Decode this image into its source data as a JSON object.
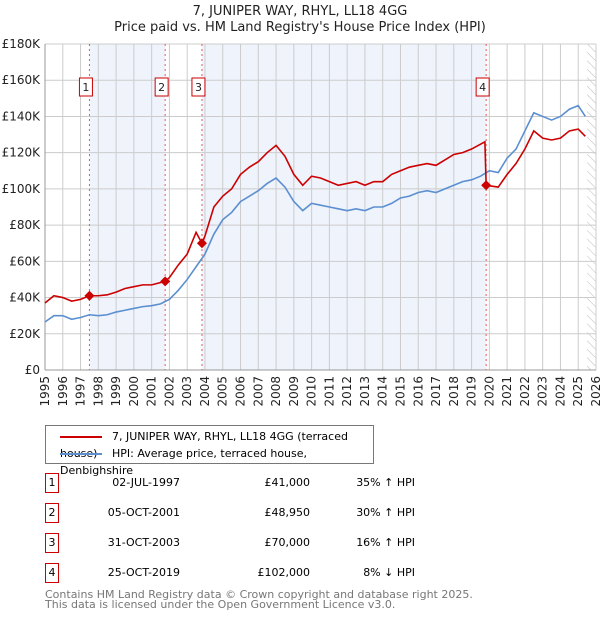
{
  "chart_data": {
    "type": "line",
    "title": "7, JUNIPER WAY, RHYL, LL18 4GG",
    "subtitle": "Price paid vs. HM Land Registry's House Price Index (HPI)",
    "xlim": [
      1995,
      2026
    ],
    "ylim": [
      0,
      180000
    ],
    "y_ticks": [
      {
        "v": 0,
        "l": "£0"
      },
      {
        "v": 20000,
        "l": "£20K"
      },
      {
        "v": 40000,
        "l": "£40K"
      },
      {
        "v": 60000,
        "l": "£60K"
      },
      {
        "v": 80000,
        "l": "£80K"
      },
      {
        "v": 100000,
        "l": "£100K"
      },
      {
        "v": 120000,
        "l": "£120K"
      },
      {
        "v": 140000,
        "l": "£140K"
      },
      {
        "v": 160000,
        "l": "£160K"
      },
      {
        "v": 180000,
        "l": "£180K"
      }
    ],
    "x_ticks": [
      "1995",
      "1996",
      "1997",
      "1998",
      "1999",
      "2000",
      "2001",
      "2002",
      "2003",
      "2004",
      "2005",
      "2006",
      "2007",
      "2008",
      "2009",
      "2010",
      "2011",
      "2012",
      "2013",
      "2014",
      "2015",
      "2016",
      "2017",
      "2018",
      "2019",
      "2020",
      "2021",
      "2022",
      "2023",
      "2024",
      "2025",
      "2026"
    ],
    "grid": true,
    "series": [
      {
        "name": "7, JUNIPER WAY, RHYL, LL18 4GG (terraced house)",
        "color": "#cc0000",
        "x": [
          1995,
          1995.5,
          1996,
          1996.5,
          1997,
          1997.5,
          1998,
          1998.5,
          1999,
          1999.5,
          2000,
          2000.5,
          2001,
          2001.75,
          2002,
          2002.5,
          2003,
          2003.5,
          2003.83,
          2004,
          2004.5,
          2005,
          2005.5,
          2006,
          2006.5,
          2007,
          2007.5,
          2008,
          2008.5,
          2009,
          2009.5,
          2010,
          2010.5,
          2011,
          2011.5,
          2012,
          2012.5,
          2013,
          2013.5,
          2014,
          2014.5,
          2015,
          2015.5,
          2016,
          2016.5,
          2017,
          2017.5,
          2018,
          2018.5,
          2019,
          2019.75,
          2019.82,
          2020.5,
          2021,
          2021.5,
          2022,
          2022.5,
          2023,
          2023.5,
          2024,
          2024.5,
          2025,
          2025.4
        ],
        "y": [
          37000,
          41000,
          40000,
          38000,
          39000,
          41000,
          41000,
          41500,
          43000,
          45000,
          46000,
          47000,
          47000,
          48950,
          51000,
          58000,
          64000,
          76000,
          70000,
          74000,
          90000,
          96000,
          100000,
          108000,
          112000,
          115000,
          120000,
          124000,
          118000,
          108000,
          102000,
          107000,
          106000,
          104000,
          102000,
          103000,
          104000,
          102000,
          104000,
          104000,
          108000,
          110000,
          112000,
          113000,
          114000,
          113000,
          116000,
          119000,
          120000,
          122000,
          126000,
          102000,
          101000,
          108000,
          114000,
          122000,
          132000,
          128000,
          127000,
          128000,
          132000,
          133000,
          129000
        ]
      },
      {
        "name": "HPI: Average price, terraced house, Denbighshire",
        "color": "#5b8fd0",
        "x": [
          1995,
          1995.5,
          1996,
          1996.5,
          1997,
          1997.5,
          1998,
          1998.5,
          1999,
          1999.5,
          2000,
          2000.5,
          2001,
          2001.5,
          2002,
          2002.5,
          2003,
          2003.5,
          2004,
          2004.5,
          2005,
          2005.5,
          2006,
          2006.5,
          2007,
          2007.5,
          2008,
          2008.5,
          2009,
          2009.5,
          2010,
          2010.5,
          2011,
          2011.5,
          2012,
          2012.5,
          2013,
          2013.5,
          2014,
          2014.5,
          2015,
          2015.5,
          2016,
          2016.5,
          2017,
          2017.5,
          2018,
          2018.5,
          2019,
          2019.5,
          2020,
          2020.5,
          2021,
          2021.5,
          2022,
          2022.5,
          2023,
          2023.5,
          2024,
          2024.5,
          2025,
          2025.4
        ],
        "y": [
          26500,
          30000,
          30000,
          28000,
          29000,
          30500,
          30000,
          30500,
          32000,
          33000,
          34000,
          35000,
          35500,
          36500,
          39000,
          44000,
          50000,
          57000,
          64000,
          75000,
          83000,
          87000,
          93000,
          96000,
          99000,
          103000,
          106000,
          101000,
          93000,
          88000,
          92000,
          91000,
          90000,
          89000,
          88000,
          89000,
          88000,
          90000,
          90000,
          92000,
          95000,
          96000,
          98000,
          99000,
          98000,
          100000,
          102000,
          104000,
          105000,
          107000,
          110000,
          109000,
          117000,
          122000,
          132000,
          142000,
          140000,
          138000,
          140000,
          144000,
          146000,
          140000
        ]
      }
    ],
    "sales": [
      {
        "n": "1",
        "x": 1997.5,
        "price": 41000,
        "date": "02-JUL-1997",
        "price_label": "£41,000",
        "hpi": "35% ↑ HPI"
      },
      {
        "n": "2",
        "x": 2001.76,
        "price": 48950,
        "date": "05-OCT-2001",
        "price_label": "£48,950",
        "hpi": "30% ↑ HPI"
      },
      {
        "n": "3",
        "x": 2003.83,
        "price": 70000,
        "date": "31-OCT-2003",
        "price_label": "£70,000",
        "hpi": "16% ↑ HPI"
      },
      {
        "n": "4",
        "x": 2019.82,
        "price": 102000,
        "date": "25-OCT-2019",
        "price_label": "£102,000",
        "hpi": "8% ↓ HPI"
      }
    ],
    "shaded_ranges": [
      [
        1997.5,
        2001.76
      ],
      [
        2003.83,
        2019.82
      ]
    ],
    "forecast_start": 2025.5
  },
  "footer": {
    "line1": "Contains HM Land Registry data © Crown copyright and database right 2025.",
    "line2": "This data is licensed under the Open Government Licence v3.0."
  }
}
